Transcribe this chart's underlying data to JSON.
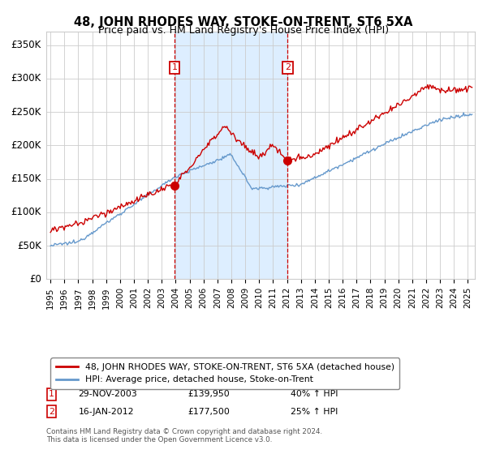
{
  "title": "48, JOHN RHODES WAY, STOKE-ON-TRENT, ST6 5XA",
  "subtitle": "Price paid vs. HM Land Registry's House Price Index (HPI)",
  "ylim": [
    0,
    370000
  ],
  "yticks": [
    0,
    50000,
    100000,
    150000,
    200000,
    250000,
    300000,
    350000
  ],
  "ytick_labels": [
    "£0",
    "£50K",
    "£100K",
    "£150K",
    "£200K",
    "£250K",
    "£300K",
    "£350K"
  ],
  "xlim_start": 1994.7,
  "xlim_end": 2025.5,
  "event1_x": 2003.91,
  "event1_label": "1",
  "event1_price": 139950,
  "event2_x": 2012.04,
  "event2_label": "2",
  "event2_price": 177500,
  "sale1_date": "29-NOV-2003",
  "sale1_amount": "£139,950",
  "sale1_hpi": "40% ↑ HPI",
  "sale2_date": "16-JAN-2012",
  "sale2_amount": "£177,500",
  "sale2_hpi": "25% ↑ HPI",
  "legend_line1": "48, JOHN RHODES WAY, STOKE-ON-TRENT, ST6 5XA (detached house)",
  "legend_line2": "HPI: Average price, detached house, Stoke-on-Trent",
  "footer": "Contains HM Land Registry data © Crown copyright and database right 2024.\nThis data is licensed under the Open Government Licence v3.0.",
  "line_color_property": "#cc0000",
  "line_color_hpi": "#6699cc",
  "shade_color": "#ddeeff",
  "background_color": "#ffffff",
  "grid_color": "#cccccc",
  "marker_box_color": "#cc0000"
}
